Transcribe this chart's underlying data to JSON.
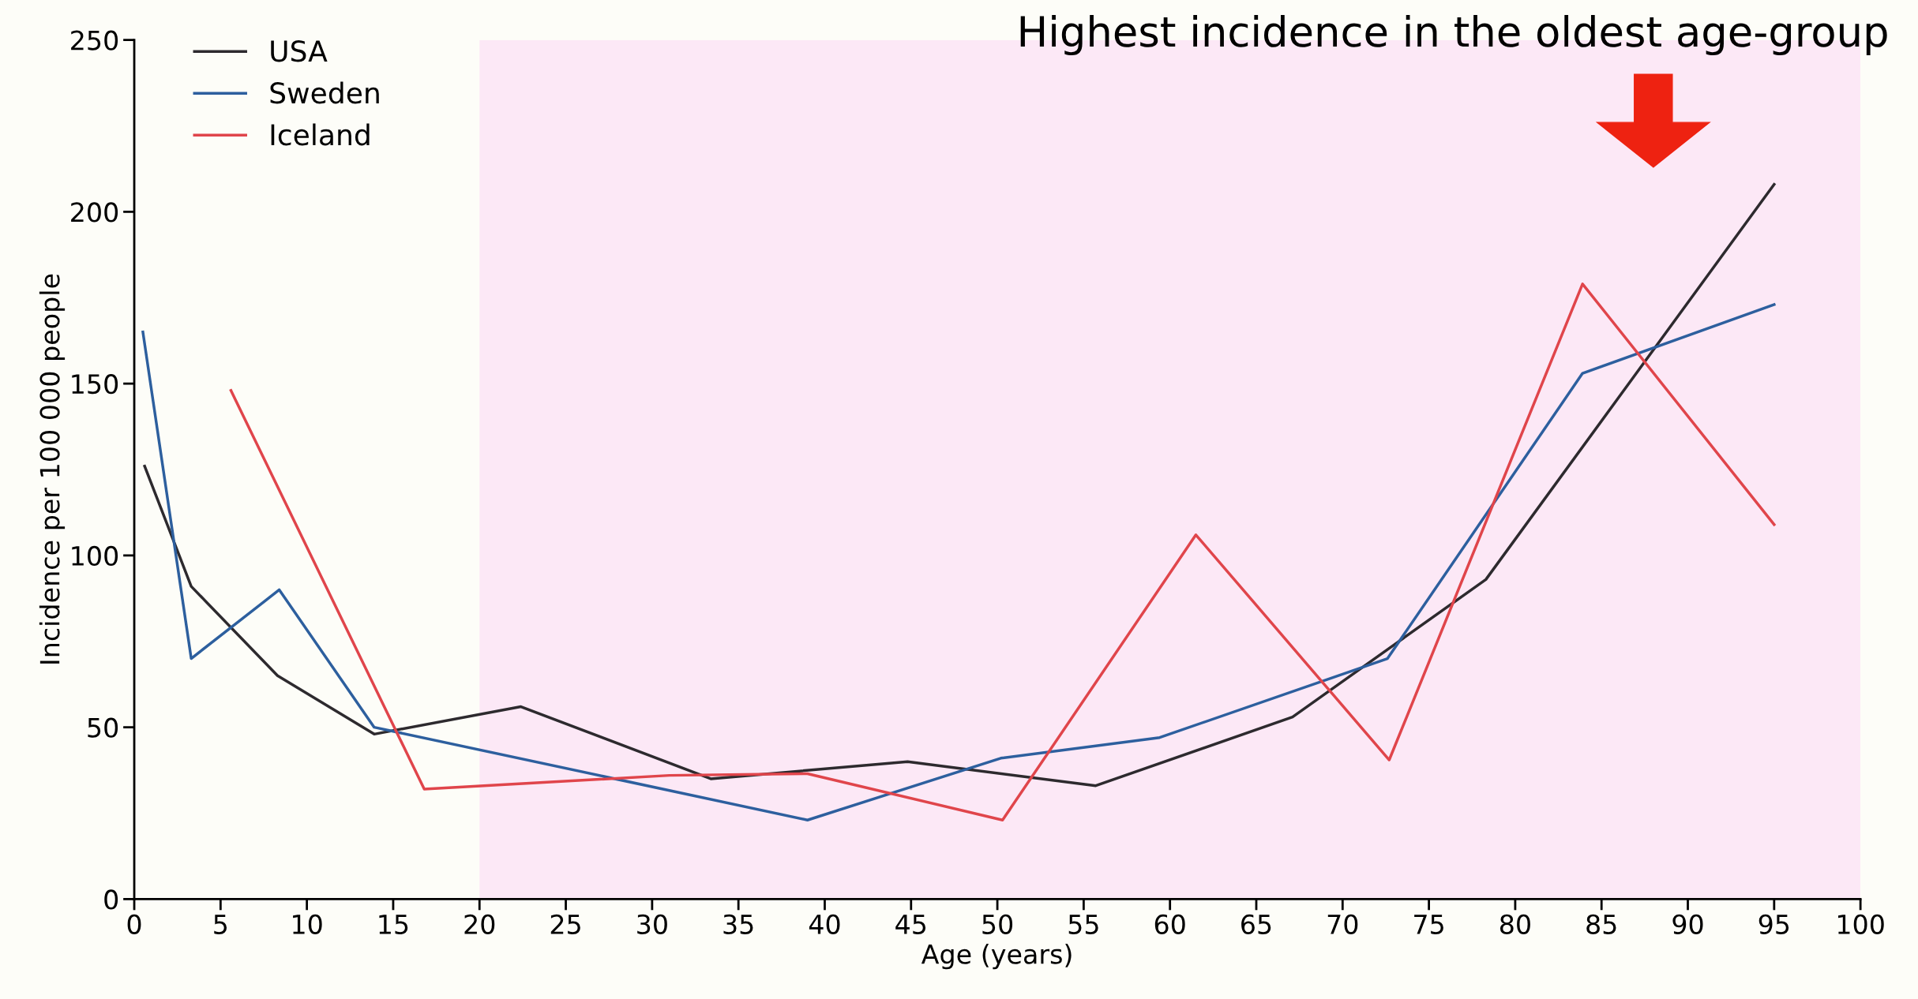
{
  "chart_data": {
    "type": "line",
    "title": "Highest incidence in the oldest age-group",
    "xlabel": "Age (years)",
    "ylabel": "Incidence per 100 000 people",
    "xlim": [
      0,
      100
    ],
    "xticks": [
      0,
      5,
      10,
      15,
      20,
      25,
      30,
      35,
      40,
      45,
      50,
      55,
      60,
      65,
      70,
      75,
      80,
      85,
      90,
      95,
      100
    ],
    "ylim": [
      0,
      250
    ],
    "yticks": [
      0,
      50,
      100,
      150,
      200,
      250
    ],
    "grid": false,
    "legend": "top left",
    "marker": "none",
    "line_style": "solid",
    "bands": [
      {
        "axis": "x",
        "from": 20,
        "to": 100,
        "color": "#fce8f6"
      }
    ],
    "series": [
      {
        "name": "USA",
        "color": "#2d2a2e",
        "x": [
          0.6,
          3.3,
          8.3,
          13.9,
          22.4,
          33.4,
          44.8,
          55.7,
          67.1,
          78.3,
          95
        ],
        "values": [
          126,
          91,
          65,
          48,
          56,
          35,
          40,
          33,
          53,
          93,
          208
        ]
      },
      {
        "name": "Sweden",
        "color": "#2d5f9e",
        "x": [
          0.5,
          3.3,
          8.4,
          13.9,
          39,
          50.2,
          59.4,
          72.6,
          83.9,
          95
        ],
        "values": [
          165,
          70,
          90,
          50,
          23,
          41,
          47,
          70,
          153,
          173
        ]
      },
      {
        "name": "Iceland",
        "color": "#e0454b",
        "x": [
          5.6,
          16.8,
          31,
          39,
          50.3,
          61.5,
          72.7,
          83.9,
          95
        ],
        "values": [
          148,
          32,
          36,
          36.5,
          23,
          106,
          40.5,
          179,
          109
        ]
      }
    ]
  }
}
